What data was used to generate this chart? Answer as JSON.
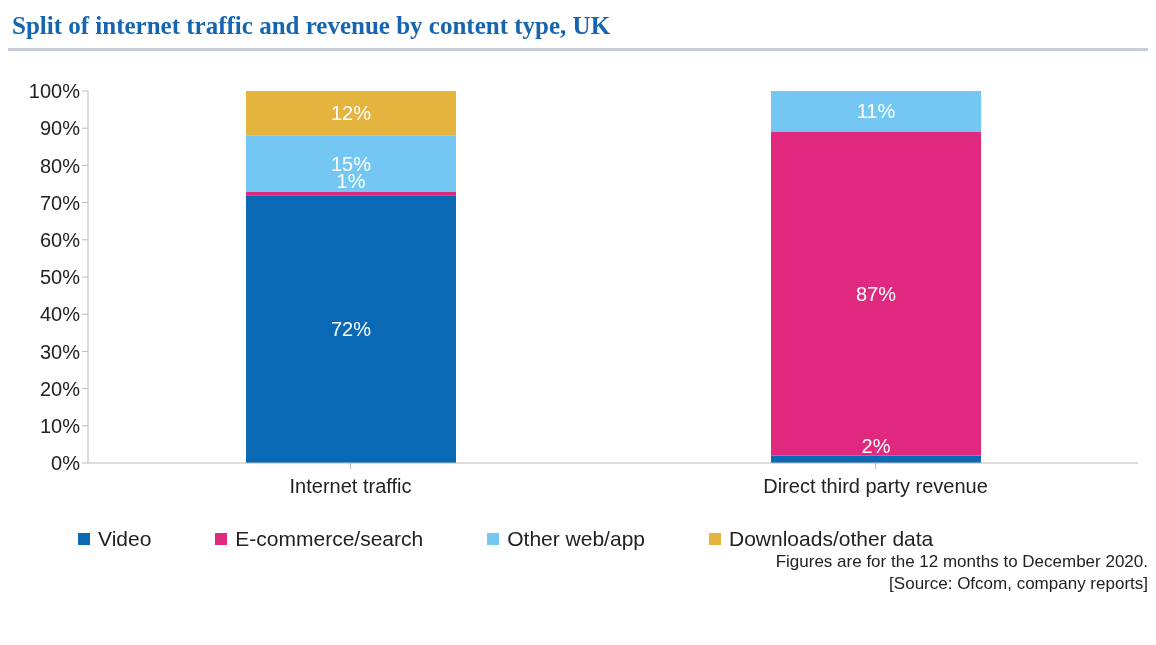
{
  "chart_data": {
    "type": "bar",
    "title": "Split of internet traffic and revenue by content type, UK",
    "categories": [
      "Internet traffic",
      "Direct third party revenue"
    ],
    "stacked": true,
    "series": [
      {
        "name": "Video",
        "color": "#0a69b5",
        "values": [
          72,
          2
        ],
        "value_labels": [
          "72%",
          "2%"
        ]
      },
      {
        "name": "E-commerce/search",
        "color": "#e0287f",
        "values": [
          1,
          87
        ],
        "value_labels": [
          "1%",
          "87%"
        ]
      },
      {
        "name": "Other web/app",
        "color": "#73c7f2",
        "values": [
          15,
          11
        ],
        "value_labels": [
          "15%",
          "11%"
        ]
      },
      {
        "name": "Downloads/other data",
        "color": "#e5b43f",
        "values": [
          12,
          null
        ],
        "value_labels": [
          "12%",
          null
        ]
      }
    ],
    "ylim": [
      0,
      100
    ],
    "yticks": [
      {
        "value": 0,
        "label": "0%"
      },
      {
        "value": 10,
        "label": "10%"
      },
      {
        "value": 20,
        "label": "20%"
      },
      {
        "value": 30,
        "label": "30%"
      },
      {
        "value": 40,
        "label": "40%"
      },
      {
        "value": 50,
        "label": "50%"
      },
      {
        "value": 60,
        "label": "60%"
      },
      {
        "value": 70,
        "label": "70%"
      },
      {
        "value": 80,
        "label": "80%"
      },
      {
        "value": 90,
        "label": "90%"
      },
      {
        "value": 100,
        "label": "100%"
      }
    ],
    "grid": false,
    "legend": "bottom",
    "annotations": [
      "Figures are for the 12 months to December 2020.",
      "[Source: Ofcom, company reports]"
    ]
  }
}
